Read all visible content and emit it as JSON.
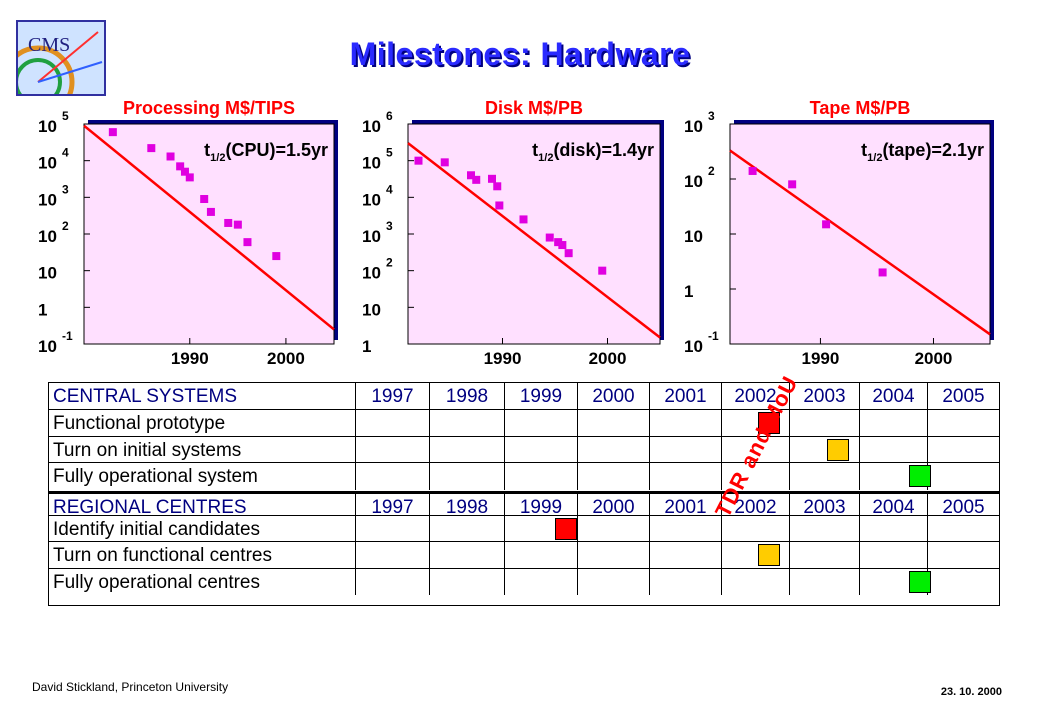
{
  "page": {
    "title": "Milestones: Hardware",
    "footer_left": "David Stickland,  Princeton University",
    "footer_right": "23. 10. 2000",
    "logo_text": "CMS"
  },
  "colors": {
    "panel_bg": "#ffe0ff",
    "fit_line": "#ff0000",
    "point": "#e000e0",
    "title": "#ff0000",
    "milestone_red": "#ff0000",
    "milestone_yellow": "#ffcc00",
    "milestone_green": "#00ee00"
  },
  "chart_data": [
    {
      "type": "scatter",
      "title": "Processing M$/TIPS",
      "annotation": "t1/2(CPU)=1.5yr",
      "yscale": "log",
      "ylim": [
        0.1,
        100000
      ],
      "y_ticks": [
        {
          "base": "10",
          "exp": "5",
          "v": 100000
        },
        {
          "base": "10",
          "exp": "4",
          "v": 10000
        },
        {
          "base": "10",
          "exp": "3",
          "v": 1000
        },
        {
          "base": "10",
          "exp": "2",
          "v": 100
        },
        {
          "base": "10",
          "exp": "",
          "v": 10
        },
        {
          "base": "1",
          "exp": "",
          "v": 1
        },
        {
          "base": "10",
          "exp": "-1",
          "v": 0.1
        }
      ],
      "x_ticks": [
        1990,
        2000
      ],
      "xlim": [
        1979,
        2005
      ],
      "points": [
        {
          "x": 1982,
          "y": 60000
        },
        {
          "x": 1986,
          "y": 22000
        },
        {
          "x": 1988,
          "y": 13000
        },
        {
          "x": 1989,
          "y": 7000
        },
        {
          "x": 1989.5,
          "y": 5000
        },
        {
          "x": 1990,
          "y": 3500
        },
        {
          "x": 1991.5,
          "y": 900
        },
        {
          "x": 1992.2,
          "y": 400
        },
        {
          "x": 1994,
          "y": 200
        },
        {
          "x": 1995,
          "y": 180
        },
        {
          "x": 1996,
          "y": 60
        },
        {
          "x": 1999,
          "y": 25
        }
      ],
      "fit": {
        "x": [
          1979,
          2005
        ],
        "y": [
          90000,
          0.25
        ]
      }
    },
    {
      "type": "scatter",
      "title": "Disk M$/PB",
      "annotation": "t1/2(disk)=1.4yr",
      "yscale": "log",
      "ylim": [
        1,
        1000000
      ],
      "y_ticks": [
        {
          "base": "10",
          "exp": "6",
          "v": 1000000
        },
        {
          "base": "10",
          "exp": "5",
          "v": 100000
        },
        {
          "base": "10",
          "exp": "4",
          "v": 10000
        },
        {
          "base": "10",
          "exp": "3",
          "v": 1000
        },
        {
          "base": "10",
          "exp": "2",
          "v": 100
        },
        {
          "base": "10",
          "exp": "",
          "v": 10
        },
        {
          "base": "1",
          "exp": "",
          "v": 1
        }
      ],
      "x_ticks": [
        1990,
        2000
      ],
      "xlim": [
        1981,
        2005
      ],
      "points": [
        {
          "x": 1982,
          "y": 100000
        },
        {
          "x": 1984.5,
          "y": 90000
        },
        {
          "x": 1987,
          "y": 40000
        },
        {
          "x": 1987.5,
          "y": 30000
        },
        {
          "x": 1989,
          "y": 32000
        },
        {
          "x": 1989.5,
          "y": 20000
        },
        {
          "x": 1989.7,
          "y": 6000
        },
        {
          "x": 1992,
          "y": 2500
        },
        {
          "x": 1994.5,
          "y": 800
        },
        {
          "x": 1995.3,
          "y": 600
        },
        {
          "x": 1995.7,
          "y": 500
        },
        {
          "x": 1996.3,
          "y": 300
        },
        {
          "x": 1999.5,
          "y": 100
        }
      ],
      "fit": {
        "x": [
          1981,
          2005
        ],
        "y": [
          300000,
          1.5
        ]
      }
    },
    {
      "type": "scatter",
      "title": "Tape M$/PB",
      "annotation": "t1/2(tape)=2.1yr",
      "yscale": "log",
      "ylim": [
        0.1,
        1000
      ],
      "y_ticks": [
        {
          "base": "10",
          "exp": "3",
          "v": 1000
        },
        {
          "base": "10",
          "exp": "2",
          "v": 100
        },
        {
          "base": "10",
          "exp": "",
          "v": 10
        },
        {
          "base": "1",
          "exp": "",
          "v": 1
        },
        {
          "base": "10",
          "exp": "-1",
          "v": 0.1
        }
      ],
      "x_ticks": [
        1990,
        2000
      ],
      "xlim": [
        1982,
        2005
      ],
      "points": [
        {
          "x": 1984,
          "y": 140
        },
        {
          "x": 1987.5,
          "y": 80
        },
        {
          "x": 1990.5,
          "y": 15
        },
        {
          "x": 1995.5,
          "y": 2
        }
      ],
      "fit": {
        "x": [
          1982,
          2005
        ],
        "y": [
          330,
          0.15
        ]
      }
    }
  ],
  "milestones": {
    "years": [
      "1997",
      "1998",
      "1999",
      "2000",
      "2001",
      "2002",
      "2003",
      "2004",
      "2005"
    ],
    "vertical_label": "TDR and MoU",
    "sections": [
      {
        "header": "CENTRAL SYSTEMS",
        "rows": [
          {
            "label": "Functional prototype",
            "year": "2002",
            "pos": 0.7,
            "color": "red"
          },
          {
            "label": "Turn on initial systems",
            "year": "2003",
            "pos": 0.7,
            "color": "yellow"
          },
          {
            "label": "Fully operational system",
            "year": "2004",
            "pos": 0.9,
            "color": "green"
          }
        ]
      },
      {
        "header": "REGIONAL CENTRES",
        "rows": [
          {
            "label": "Identify initial candidates",
            "year": "1999",
            "pos": 0.85,
            "color": "red"
          },
          {
            "label": "Turn on functional centres",
            "year": "2002",
            "pos": 0.7,
            "color": "yellow"
          },
          {
            "label": "Fully operational centres",
            "year": "2004",
            "pos": 0.9,
            "color": "green"
          }
        ]
      }
    ]
  }
}
